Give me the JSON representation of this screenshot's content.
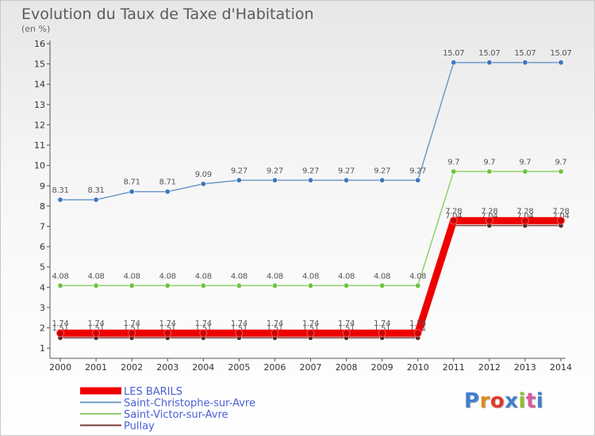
{
  "title": "Evolution du Taux de Taxe d'Habitation",
  "unit": "(en %)",
  "logo": {
    "text": "Proxiti",
    "colors": [
      "#3f7fd0",
      "#e08a1e",
      "#e03a2a",
      "#3f7fd0",
      "#8bbf2c",
      "#d85a9a",
      "#3f7fd0"
    ]
  },
  "chart_data": {
    "type": "line",
    "x": [
      "2000",
      "2001",
      "2002",
      "2003",
      "2004",
      "2005",
      "2006",
      "2007",
      "2008",
      "2009",
      "2010",
      "2011",
      "2012",
      "2013",
      "2014"
    ],
    "ylim": [
      0.5,
      16
    ],
    "yticks": [
      1,
      2,
      3,
      4,
      5,
      6,
      7,
      8,
      9,
      10,
      11,
      12,
      13,
      14,
      15,
      16
    ],
    "grid": false,
    "legend": "bottom",
    "series": [
      {
        "name": "Saint-Christophe-sur-Avre",
        "color": "#6e9ac8",
        "marker": "#3b78c0",
        "width": 1.5,
        "values": [
          8.31,
          8.31,
          8.71,
          8.71,
          9.09,
          9.27,
          9.27,
          9.27,
          9.27,
          9.27,
          9.27,
          15.07,
          15.07,
          15.07,
          15.07
        ],
        "labels": [
          "8.31",
          "8.31",
          "8.71",
          "8.71",
          "9.09",
          "9.27",
          "9.27",
          "9.27",
          "9.27",
          "9.27",
          "9.27",
          "15.07",
          "15.07",
          "15.07",
          "15.07"
        ]
      },
      {
        "name": "Saint-Victor-sur-Avre",
        "color": "#8fd16a",
        "marker": "#6cc43c",
        "width": 1.5,
        "values": [
          4.08,
          4.08,
          4.08,
          4.08,
          4.08,
          4.08,
          4.08,
          4.08,
          4.08,
          4.08,
          4.08,
          9.7,
          9.7,
          9.7,
          9.7
        ],
        "labels": [
          "4.08",
          "4.08",
          "4.08",
          "4.08",
          "4.08",
          "4.08",
          "4.08",
          "4.08",
          "4.08",
          "4.08",
          "4.08",
          "9.7",
          "9.7",
          "9.7",
          "9.7"
        ]
      },
      {
        "name": "Pullay",
        "color": "#7a3a3a",
        "marker": "#5a2a2a",
        "width": 1.5,
        "values": [
          1.51,
          1.51,
          1.51,
          1.51,
          1.51,
          1.51,
          1.51,
          1.51,
          1.51,
          1.51,
          1.51,
          7.04,
          7.04,
          7.04,
          7.04
        ],
        "labels": [
          "1.51",
          "1.51",
          "1.51",
          "1.51",
          "1.51",
          "1.51",
          "1.51",
          "1.51",
          "1.51",
          "1.51",
          "1.51",
          "7.04",
          "7.04",
          "7.04",
          "7.04"
        ]
      },
      {
        "name": "LES BARILS",
        "color": "#ee0000",
        "marker": "#cc0000",
        "width": 9,
        "values": [
          1.74,
          1.74,
          1.74,
          1.74,
          1.74,
          1.74,
          1.74,
          1.74,
          1.74,
          1.74,
          1.74,
          7.28,
          7.28,
          7.28,
          7.28
        ],
        "labels": [
          "1.74",
          "1.74",
          "1.74",
          "1.74",
          "1.74",
          "1.74",
          "1.74",
          "1.74",
          "1.74",
          "1.74",
          "1.74",
          "7.28",
          "7.28",
          "7.28",
          "7.28"
        ]
      }
    ],
    "legend_order": [
      "LES BARILS",
      "Saint-Christophe-sur-Avre",
      "Saint-Victor-sur-Avre",
      "Pullay"
    ],
    "legend_text_color": "#4a5fd8"
  }
}
